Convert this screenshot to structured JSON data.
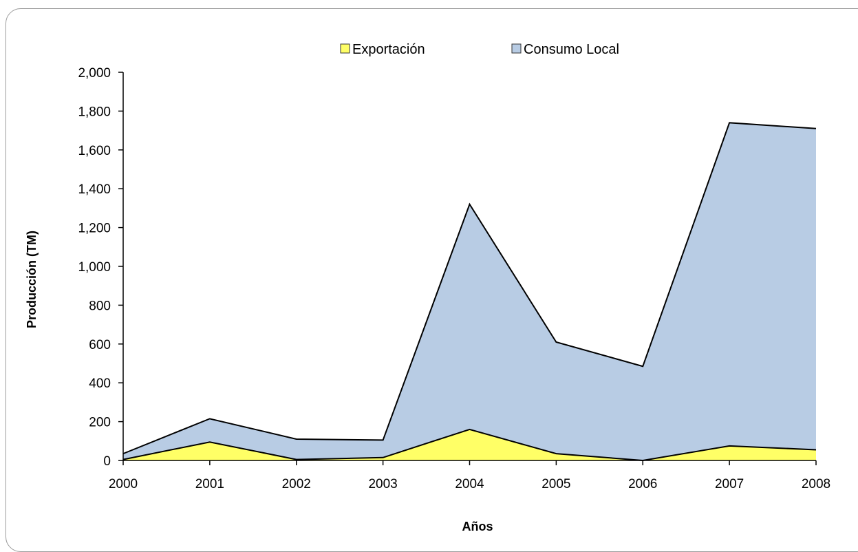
{
  "chart_data": {
    "type": "area",
    "stacked": true,
    "xlabel": "Años",
    "ylabel": "Producción (TM)",
    "ylim": [
      0,
      2000
    ],
    "y_ticks": [
      "0",
      "200",
      "400",
      "600",
      "800",
      "1,000",
      "1,200",
      "1,400",
      "1,600",
      "1,800",
      "2,000"
    ],
    "x": [
      "2000",
      "2001",
      "2002",
      "2003",
      "2004",
      "2005",
      "2006",
      "2007",
      "2008"
    ],
    "series": [
      {
        "name": "Exportación",
        "color": "#ffff66",
        "values": [
          5,
          95,
          5,
          15,
          160,
          35,
          0,
          75,
          55
        ]
      },
      {
        "name": "Consumo Local",
        "color": "#b8cce4",
        "values": [
          30,
          120,
          105,
          90,
          1160,
          575,
          485,
          1665,
          1655
        ]
      }
    ],
    "legend_position": "top-center",
    "grid": false
  }
}
